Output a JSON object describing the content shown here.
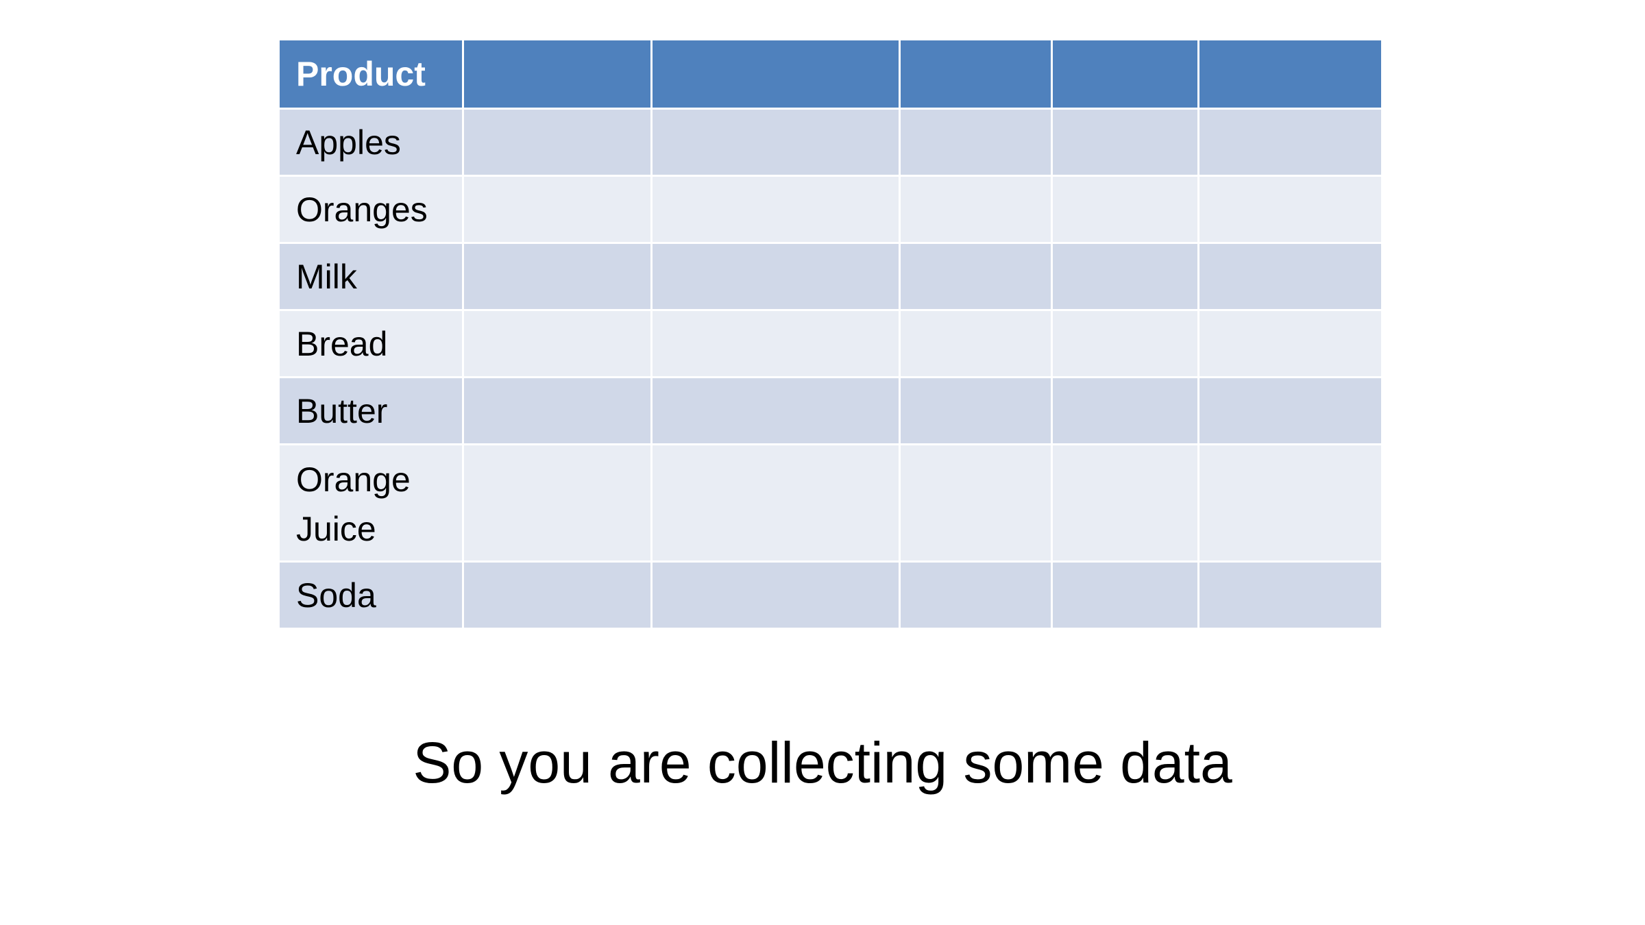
{
  "table": {
    "header": [
      "Product",
      "",
      "",
      "",
      "",
      ""
    ],
    "rows": [
      [
        "Apples",
        "",
        "",
        "",
        "",
        ""
      ],
      [
        "Oranges",
        "",
        "",
        "",
        "",
        ""
      ],
      [
        "Milk",
        "",
        "",
        "",
        "",
        ""
      ],
      [
        "Bread",
        "",
        "",
        "",
        "",
        ""
      ],
      [
        "Butter",
        "",
        "",
        "",
        "",
        ""
      ],
      [
        "Orange Juice",
        "",
        "",
        "",
        "",
        ""
      ],
      [
        "Soda",
        "",
        "",
        "",
        "",
        ""
      ]
    ]
  },
  "caption": "So you are collecting some data",
  "colors": {
    "header_bg": "#4f81bd",
    "row_odd_bg": "#d0d8e8",
    "row_even_bg": "#e9edf4"
  }
}
